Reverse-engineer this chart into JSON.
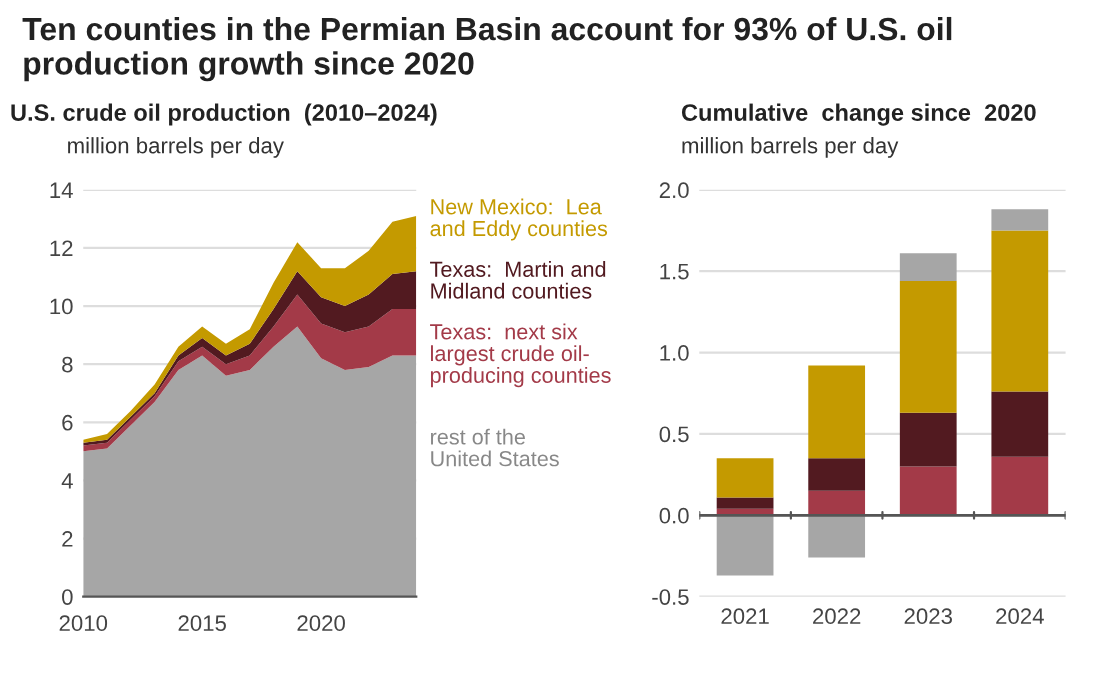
{
  "chart_data": [
    {
      "type": "area",
      "stacked": true,
      "title": "Ten counties in the Permian Basin account for 93% of U.S. oil production growth since 2020",
      "subtitle": "U.S. crude oil production  (2010–2024)",
      "ylabel": "million barrels per day",
      "x": [
        2010,
        2011,
        2012,
        2013,
        2014,
        2015,
        2016,
        2017,
        2018,
        2019,
        2020,
        2021,
        2022,
        2023,
        2024
      ],
      "series": [
        {
          "name": "rest of the\nUnited States",
          "color": "#a6a6a6",
          "values": [
            5.0,
            5.1,
            5.9,
            6.7,
            7.8,
            8.3,
            7.6,
            7.8,
            8.6,
            9.3,
            8.2,
            7.8,
            7.9,
            8.3,
            8.3
          ]
        },
        {
          "name": "Texas:  next six\nlargest crude oil-\nproducing counties",
          "color": "#a33a48",
          "values": [
            0.2,
            0.2,
            0.2,
            0.2,
            0.3,
            0.3,
            0.4,
            0.5,
            0.7,
            1.1,
            1.2,
            1.3,
            1.4,
            1.6,
            1.6
          ]
        },
        {
          "name": "Texas:  Martin and\nMidland counties",
          "color": "#521a20",
          "values": [
            0.1,
            0.1,
            0.1,
            0.1,
            0.2,
            0.3,
            0.3,
            0.4,
            0.6,
            0.8,
            0.9,
            0.9,
            1.1,
            1.2,
            1.3
          ]
        },
        {
          "name": "New Mexico:  Lea\nand Eddy counties",
          "color": "#c49a00",
          "values": [
            0.1,
            0.2,
            0.2,
            0.3,
            0.3,
            0.4,
            0.4,
            0.5,
            0.9,
            1.0,
            1.0,
            1.3,
            1.5,
            1.8,
            1.9
          ]
        }
      ],
      "xlim": [
        2010,
        2024
      ],
      "xticks": [
        2010,
        2015,
        2020
      ],
      "ylim": [
        0,
        14
      ],
      "yticks": [
        0,
        2,
        4,
        6,
        8,
        10,
        12,
        14
      ],
      "grid": "y"
    },
    {
      "type": "bar",
      "stacked": true,
      "title": "Cumulative  change since  2020",
      "ylabel": "million barrels per day",
      "categories": [
        "2021",
        "2022",
        "2023",
        "2024"
      ],
      "series": [
        {
          "color": "#a33a48",
          "values": [
            0.04,
            0.15,
            0.3,
            0.36
          ]
        },
        {
          "color": "#521a20",
          "values": [
            0.07,
            0.2,
            0.33,
            0.4
          ]
        },
        {
          "color": "#c49a00",
          "values": [
            0.24,
            0.57,
            0.81,
            0.99
          ]
        },
        {
          "color": "#a6a6a6",
          "values": [
            -0.37,
            -0.26,
            0.17,
            0.13
          ]
        }
      ],
      "ylim": [
        -0.5,
        2.0
      ],
      "yticks": [
        {
          "value": -0.5,
          "label": "-0.5"
        },
        {
          "value": 0.0,
          "label": "0.0"
        },
        {
          "value": 0.5,
          "label": "0.5"
        },
        {
          "value": 1.0,
          "label": "1.0"
        },
        {
          "value": 1.5,
          "label": "1.5"
        },
        {
          "value": 2.0,
          "label": "2.0"
        }
      ],
      "grid": "y"
    }
  ]
}
